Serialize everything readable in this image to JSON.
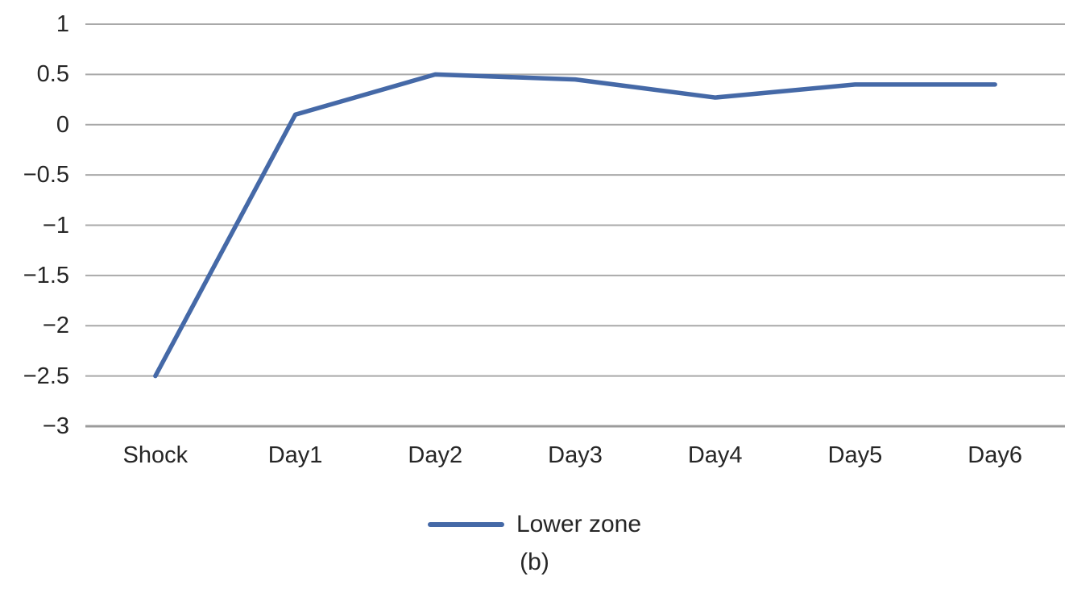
{
  "chart_data": {
    "type": "line",
    "categories": [
      "Shock",
      "Day1",
      "Day2",
      "Day3",
      "Day4",
      "Day5",
      "Day6"
    ],
    "series": [
      {
        "name": "Lower zone",
        "values": [
          -2.5,
          0.1,
          0.5,
          0.45,
          0.27,
          0.4,
          0.4
        ],
        "color": "#4569a7"
      }
    ],
    "yticks": [
      {
        "value": 1,
        "label": "1"
      },
      {
        "value": 0.5,
        "label": "0.5"
      },
      {
        "value": 0,
        "label": "0"
      },
      {
        "value": -0.5,
        "label": "−0.5"
      },
      {
        "value": -1,
        "label": "−1"
      },
      {
        "value": -1.5,
        "label": "−1.5"
      },
      {
        "value": -2,
        "label": "−2"
      },
      {
        "value": -2.5,
        "label": "−2.5"
      },
      {
        "value": -3,
        "label": "−3"
      }
    ],
    "ylim": [
      -3,
      1
    ],
    "xlabel": "",
    "ylabel": "",
    "title": "",
    "grid": "horizontal",
    "legend_position": "bottom"
  },
  "legend": {
    "items": [
      {
        "label": "Lower zone",
        "color": "#4569a7"
      }
    ]
  },
  "caption": "(b)",
  "colors": {
    "line": "#4569a7",
    "gridline": "#a9a9a9",
    "axis_line": "#9b9b9b",
    "text": "#262626",
    "background": "#ffffff"
  }
}
